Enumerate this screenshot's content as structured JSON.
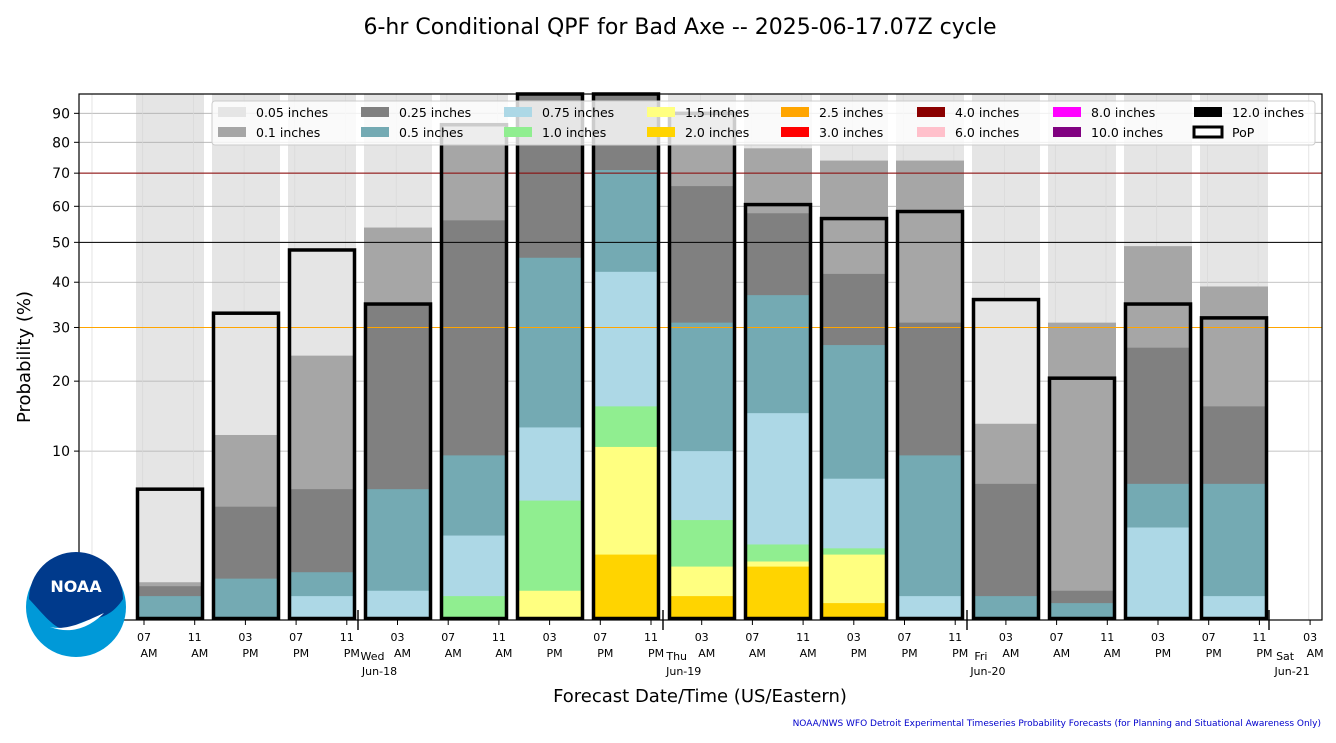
{
  "chart_data": {
    "type": "bar",
    "title": "6-hr Conditional QPF for Bad Axe -- 2025-06-17.07Z cycle",
    "xlabel": "Forecast Date/Time (US/Eastern)",
    "ylabel": "Probability (%)",
    "y_scale": "sqrt",
    "ylim": [
      0,
      97
    ],
    "yticks": [
      10,
      20,
      30,
      40,
      50,
      60,
      70,
      80,
      90
    ],
    "grid": true,
    "legend_position": "top",
    "reference_lines": [
      {
        "y": 70,
        "color": "#8b0000"
      },
      {
        "y": 50,
        "color": "#000000"
      },
      {
        "y": 30,
        "color": "#ffa500"
      }
    ],
    "x_ticks": [
      {
        "label": "07\nAM",
        "day": ""
      },
      {
        "label": "11\nAM",
        "day": ""
      },
      {
        "label": "03\nPM",
        "day": ""
      },
      {
        "label": "07\nPM",
        "day": ""
      },
      {
        "label": "11\nPM",
        "day": ""
      },
      {
        "label": "03\nAM",
        "day": "Wed\nJun-18"
      },
      {
        "label": "07\nAM",
        "day": ""
      },
      {
        "label": "11\nAM",
        "day": ""
      },
      {
        "label": "03\nPM",
        "day": ""
      },
      {
        "label": "07\nPM",
        "day": ""
      },
      {
        "label": "11\nPM",
        "day": ""
      },
      {
        "label": "03\nAM",
        "day": "Thu\nJun-19"
      },
      {
        "label": "07\nAM",
        "day": ""
      },
      {
        "label": "11\nAM",
        "day": ""
      },
      {
        "label": "03\nPM",
        "day": ""
      },
      {
        "label": "07\nPM",
        "day": ""
      },
      {
        "label": "11\nPM",
        "day": ""
      },
      {
        "label": "03\nAM",
        "day": "Fri\nJun-20"
      },
      {
        "label": "07\nAM",
        "day": ""
      },
      {
        "label": "11\nAM",
        "day": ""
      },
      {
        "label": "03\nPM",
        "day": ""
      },
      {
        "label": "07\nPM",
        "day": ""
      },
      {
        "label": "11\nPM",
        "day": ""
      },
      {
        "label": "03\nAM",
        "day": "Sat\nJun-21"
      }
    ],
    "series": [
      {
        "name": "0.05 inches",
        "color": "#e5e5e5",
        "values": [
          6,
          33,
          48,
          54,
          86,
          97,
          97,
          90,
          78,
          74,
          74,
          36,
          31,
          49,
          39
        ]
      },
      {
        "name": "0.1 inches",
        "color": "#a6a6a6",
        "values": [
          0.5,
          12,
          24.5,
          54,
          86,
          97,
          97,
          90,
          78,
          74,
          74,
          13.5,
          31,
          49,
          39
        ]
      },
      {
        "name": "0.25 inches",
        "color": "#808080",
        "values": [
          0.4,
          4.5,
          6,
          35,
          56,
          97,
          97,
          66,
          58,
          42,
          31,
          6.5,
          0.3,
          26,
          16
        ]
      },
      {
        "name": "0.5 inches",
        "color": "#74aab3",
        "values": [
          0.2,
          0.6,
          0.8,
          6,
          9.5,
          46,
          71,
          31,
          37,
          26.5,
          9.5,
          0.2,
          0.1,
          6.5,
          6.5
        ]
      },
      {
        "name": "0.75 inches",
        "color": "#add8e6",
        "values": [
          0,
          0,
          0.2,
          0.3,
          2.5,
          13,
          42.5,
          10,
          15,
          7,
          0.2,
          0,
          0,
          3,
          0.2
        ]
      },
      {
        "name": "1.0 inches",
        "color": "#90ee90",
        "values": [
          0,
          0,
          0,
          0,
          0.2,
          5,
          16,
          3.5,
          2,
          1.8,
          0,
          0,
          0,
          0,
          0
        ]
      },
      {
        "name": "1.5 inches",
        "color": "#ffff80",
        "values": [
          0,
          0,
          0,
          0,
          0,
          0.3,
          10.5,
          1,
          1.2,
          1.5,
          0,
          0,
          0,
          0,
          0
        ]
      },
      {
        "name": "2.0 inches",
        "color": "#ffd400",
        "values": [
          0,
          0,
          0,
          0,
          0,
          0,
          1.5,
          0.2,
          1,
          0.1,
          0,
          0,
          0,
          0,
          0
        ]
      },
      {
        "name": "2.5 inches",
        "color": "#ffa500",
        "values": [
          0,
          0,
          0,
          0,
          0,
          0,
          0,
          0,
          0,
          0,
          0,
          0,
          0,
          0,
          0
        ]
      },
      {
        "name": "3.0 inches",
        "color": "#ff0000",
        "values": [
          0,
          0,
          0,
          0,
          0,
          0,
          0,
          0,
          0,
          0,
          0,
          0,
          0,
          0,
          0
        ]
      },
      {
        "name": "4.0 inches",
        "color": "#8b0000",
        "values": [
          0,
          0,
          0,
          0,
          0,
          0,
          0,
          0,
          0,
          0,
          0,
          0,
          0,
          0,
          0
        ]
      },
      {
        "name": "6.0 inches",
        "color": "#ffc0cb",
        "values": [
          0,
          0,
          0,
          0,
          0,
          0,
          0,
          0,
          0,
          0,
          0,
          0,
          0,
          0,
          0
        ]
      },
      {
        "name": "8.0 inches",
        "color": "#ff00ff",
        "values": [
          0,
          0,
          0,
          0,
          0,
          0,
          0,
          0,
          0,
          0,
          0,
          0,
          0,
          0,
          0
        ]
      },
      {
        "name": "10.0 inches",
        "color": "#800080",
        "values": [
          0,
          0,
          0,
          0,
          0,
          0,
          0,
          0,
          0,
          0,
          0,
          0,
          0,
          0,
          0
        ]
      },
      {
        "name": "12.0 inches",
        "color": "#000000",
        "values": [
          0,
          0,
          0,
          0,
          0,
          0,
          0,
          0,
          0,
          0,
          0,
          0,
          0,
          0,
          0
        ]
      }
    ],
    "pop": {
      "name": "PoP",
      "values": [
        6,
        33,
        48,
        35,
        86,
        97,
        97,
        90,
        60.5,
        56.5,
        58.5,
        36,
        20.5,
        35,
        32
      ]
    }
  },
  "footer": "NOAA/NWS WFO Detroit Experimental Timeseries Probability Forecasts (for Planning and Situational Awareness Only)",
  "logo": {
    "text": "NOAA",
    "icon": "noaa-logo"
  }
}
